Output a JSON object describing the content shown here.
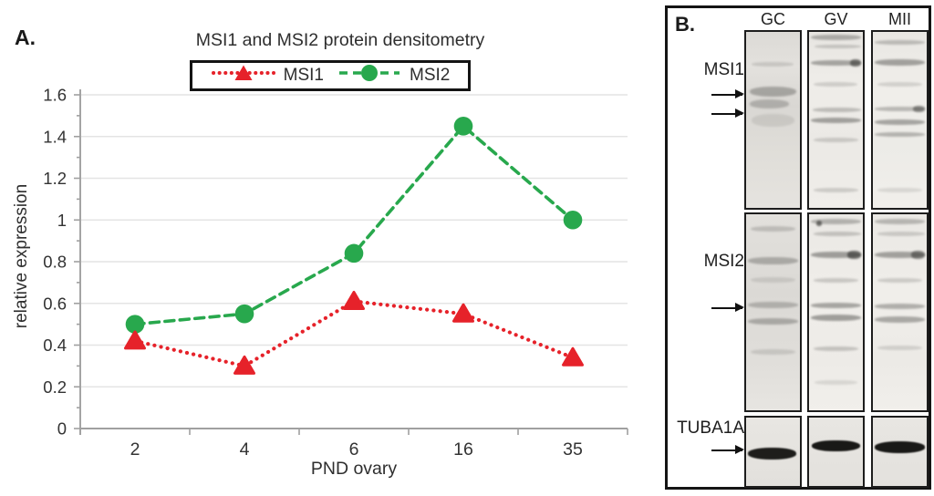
{
  "figure": {
    "panel_a_label": "A.",
    "panel_b_label": "B."
  },
  "colors": {
    "msi1_red": "#e6222a",
    "msi2_green": "#28a84d",
    "grid": "#e4e4e4",
    "axis": "#a0a0a0",
    "tick_text": "#333333",
    "panel_border": "#141414"
  },
  "chart_data": {
    "type": "line",
    "title": "MSI1 and MSI2 protein densitometry",
    "xlabel": "PND ovary",
    "ylabel": "relative expression",
    "categories": [
      "2",
      "4",
      "6",
      "16",
      "35"
    ],
    "series": [
      {
        "name": "MSI1",
        "color": "#e6222a",
        "marker": "triangle",
        "line_style": "dotted",
        "values": [
          0.42,
          0.3,
          0.61,
          0.55,
          0.34
        ]
      },
      {
        "name": "MSI2",
        "color": "#28a84d",
        "marker": "circle",
        "line_style": "dashed",
        "values": [
          0.5,
          0.55,
          0.84,
          1.45,
          1.0
        ]
      }
    ],
    "ylim": [
      0,
      1.6
    ],
    "ytick_step": 0.2,
    "ytick_labels": [
      "0",
      "0.2",
      "0.4",
      "0.6",
      "0.8",
      "1",
      "1.2",
      "1.4",
      "1.6"
    ],
    "grid": true,
    "legend_position": "top-center"
  },
  "panel_b": {
    "label": "B.",
    "lanes": [
      "GC",
      "GV",
      "MII"
    ],
    "rows": [
      {
        "label": "MSI1",
        "band_color": "#32322f",
        "lanes": [
          {
            "base": "linear-gradient(180deg,#dcdad6,#e3e1dd 20%,#d9d7d3 42%,#e0ded9 70%,#e5e3df)",
            "bands": [
              [
                0.185,
                0.15,
                5,
                10,
                88
              ],
              [
                0.34,
                0.32,
                11,
                6,
                94
              ],
              [
                0.41,
                0.25,
                10,
                6,
                80
              ],
              [
                0.5,
                0.1,
                14,
                10,
                90
              ]
            ]
          },
          {
            "base": "linear-gradient(180deg,#e7e5e1,#efede9 30%,#ebe9e5 60%,#f0eeea)",
            "bands": [
              [
                0.03,
                0.33,
                6,
                4,
                96
              ],
              [
                0.085,
                0.2,
                4,
                10,
                96
              ],
              [
                0.175,
                0.38,
                6,
                4,
                96
              ],
              [
                0.175,
                0.6,
                8,
                76,
                96
              ],
              [
                0.3,
                0.17,
                5,
                8,
                90
              ],
              [
                0.445,
                0.25,
                5,
                6,
                96
              ],
              [
                0.505,
                0.4,
                6,
                4,
                96
              ],
              [
                0.615,
                0.18,
                5,
                8,
                92
              ],
              [
                0.9,
                0.18,
                5,
                8,
                92
              ]
            ]
          },
          {
            "base": "linear-gradient(180deg,#e9e7e3,#f0eeea 35%,#ecebe7 65%,#f1efeb)",
            "bands": [
              [
                0.06,
                0.25,
                5,
                4,
                96
              ],
              [
                0.175,
                0.4,
                7,
                4,
                96
              ],
              [
                0.3,
                0.15,
                5,
                8,
                92
              ],
              [
                0.44,
                0.28,
                5,
                4,
                96
              ],
              [
                0.44,
                0.5,
                7,
                74,
                96
              ],
              [
                0.515,
                0.38,
                6,
                4,
                96
              ],
              [
                0.585,
                0.3,
                5,
                4,
                96
              ],
              [
                0.9,
                0.12,
                5,
                8,
                92
              ]
            ]
          }
        ]
      },
      {
        "label": "MSI2",
        "band_color": "#32322f",
        "lanes": [
          {
            "base": "linear-gradient(180deg,#e2e0dc,#dbd9d5 40%,#e0deda 75%,#e7e5e1)",
            "bands": [
              [
                0.075,
                0.2,
                6,
                8,
                92
              ],
              [
                0.235,
                0.3,
                8,
                4,
                96
              ],
              [
                0.335,
                0.12,
                6,
                8,
                92
              ],
              [
                0.465,
                0.26,
                7,
                4,
                96
              ],
              [
                0.545,
                0.3,
                7,
                4,
                96
              ],
              [
                0.7,
                0.14,
                6,
                8,
                92
              ]
            ]
          },
          {
            "base": "linear-gradient(180deg,#eae8e4,#f0eeea 40%,#edebe7 75%,#f1efeb)",
            "bands": [
              [
                0.035,
                0.3,
                6,
                4,
                96
              ],
              [
                0.045,
                0.65,
                6,
                14,
                24
              ],
              [
                0.1,
                0.22,
                5,
                8,
                96
              ],
              [
                0.205,
                0.42,
                7,
                4,
                96
              ],
              [
                0.205,
                0.65,
                9,
                72,
                97
              ],
              [
                0.335,
                0.2,
                5,
                8,
                92
              ],
              [
                0.465,
                0.38,
                6,
                4,
                96
              ],
              [
                0.53,
                0.42,
                7,
                4,
                96
              ],
              [
                0.685,
                0.22,
                5,
                8,
                92
              ],
              [
                0.86,
                0.12,
                5,
                10,
                90
              ]
            ]
          },
          {
            "base": "linear-gradient(180deg,#eae8e4,#f0eeea 40%,#eceae6 75%,#f1efeb)",
            "bands": [
              [
                0.035,
                0.28,
                6,
                4,
                96
              ],
              [
                0.1,
                0.18,
                5,
                8,
                96
              ],
              [
                0.205,
                0.4,
                7,
                4,
                96
              ],
              [
                0.205,
                0.55,
                9,
                72,
                97
              ],
              [
                0.335,
                0.18,
                5,
                8,
                92
              ],
              [
                0.47,
                0.33,
                6,
                4,
                96
              ],
              [
                0.535,
                0.36,
                7,
                4,
                96
              ],
              [
                0.68,
                0.15,
                5,
                8,
                92
              ]
            ]
          }
        ]
      },
      {
        "label": "TUBA1A",
        "band_color": "#0f0f0d",
        "lanes": [
          {
            "base": "linear-gradient(180deg,#e8e6e2,#e2e0dc)",
            "bands": [
              [
                0.53,
                0.93,
                13,
                3,
                93
              ]
            ]
          },
          {
            "base": "linear-gradient(180deg,#e8e6e2,#e3e1dd)",
            "bands": [
              [
                0.42,
                0.95,
                12,
                5,
                95
              ]
            ]
          },
          {
            "base": "linear-gradient(180deg,#e8e6e2,#e3e1dd)",
            "bands": [
              [
                0.43,
                0.95,
                13,
                3,
                97
              ]
            ]
          }
        ]
      }
    ]
  }
}
